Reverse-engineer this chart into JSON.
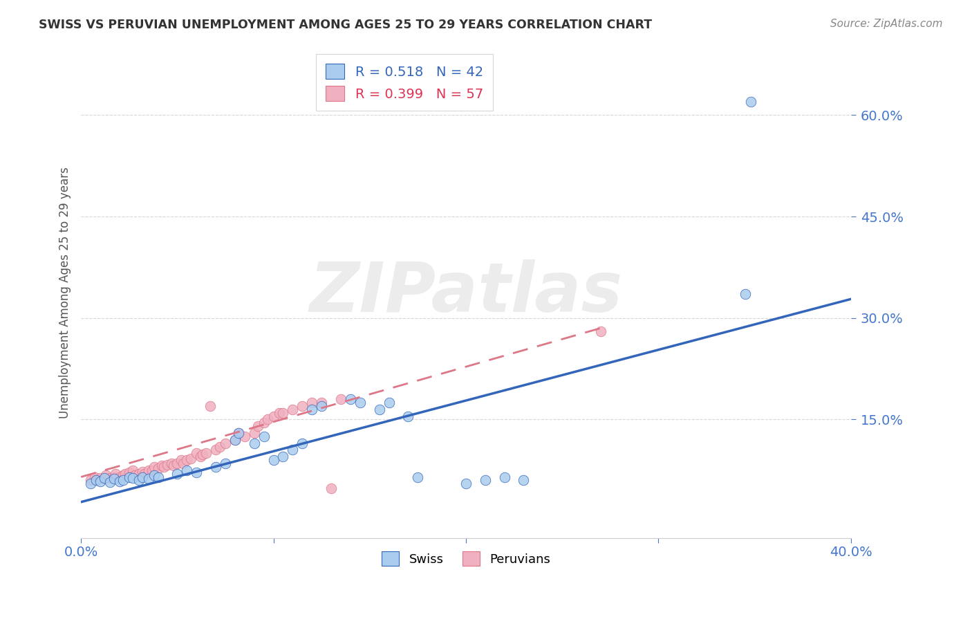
{
  "title": "SWISS VS PERUVIAN UNEMPLOYMENT AMONG AGES 25 TO 29 YEARS CORRELATION CHART",
  "source": "Source: ZipAtlas.com",
  "ylabel": "Unemployment Among Ages 25 to 29 years",
  "xlim": [
    0.0,
    0.4
  ],
  "ylim": [
    -0.025,
    0.7
  ],
  "xtick_positions": [
    0.0,
    0.1,
    0.2,
    0.3,
    0.4
  ],
  "ytick_positions": [
    0.15,
    0.3,
    0.45,
    0.6
  ],
  "ytick_labels": [
    "15.0%",
    "30.0%",
    "45.0%",
    "60.0%"
  ],
  "swiss_R": 0.518,
  "swiss_N": 42,
  "peru_R": 0.399,
  "peru_N": 57,
  "swiss_color": "#aaccee",
  "peru_color": "#f0b0c0",
  "swiss_line_color": "#3366bb",
  "peru_line_color": "#dd7788",
  "swiss_scatter": [
    [
      0.005,
      0.055
    ],
    [
      0.008,
      0.06
    ],
    [
      0.01,
      0.058
    ],
    [
      0.012,
      0.063
    ],
    [
      0.015,
      0.057
    ],
    [
      0.017,
      0.062
    ],
    [
      0.02,
      0.058
    ],
    [
      0.022,
      0.06
    ],
    [
      0.025,
      0.065
    ],
    [
      0.027,
      0.063
    ],
    [
      0.03,
      0.06
    ],
    [
      0.032,
      0.065
    ],
    [
      0.035,
      0.062
    ],
    [
      0.038,
      0.068
    ],
    [
      0.04,
      0.065
    ],
    [
      0.05,
      0.07
    ],
    [
      0.055,
      0.075
    ],
    [
      0.06,
      0.072
    ],
    [
      0.07,
      0.08
    ],
    [
      0.075,
      0.085
    ],
    [
      0.08,
      0.12
    ],
    [
      0.082,
      0.13
    ],
    [
      0.09,
      0.115
    ],
    [
      0.095,
      0.125
    ],
    [
      0.1,
      0.09
    ],
    [
      0.105,
      0.095
    ],
    [
      0.11,
      0.105
    ],
    [
      0.115,
      0.115
    ],
    [
      0.12,
      0.165
    ],
    [
      0.125,
      0.17
    ],
    [
      0.14,
      0.18
    ],
    [
      0.145,
      0.175
    ],
    [
      0.155,
      0.165
    ],
    [
      0.16,
      0.175
    ],
    [
      0.17,
      0.155
    ],
    [
      0.175,
      0.065
    ],
    [
      0.2,
      0.055
    ],
    [
      0.21,
      0.06
    ],
    [
      0.22,
      0.065
    ],
    [
      0.23,
      0.06
    ],
    [
      0.345,
      0.335
    ],
    [
      0.348,
      0.62
    ]
  ],
  "peru_scatter": [
    [
      0.005,
      0.06
    ],
    [
      0.007,
      0.065
    ],
    [
      0.008,
      0.06
    ],
    [
      0.01,
      0.063
    ],
    [
      0.012,
      0.062
    ],
    [
      0.013,
      0.068
    ],
    [
      0.015,
      0.063
    ],
    [
      0.017,
      0.065
    ],
    [
      0.018,
      0.07
    ],
    [
      0.02,
      0.065
    ],
    [
      0.022,
      0.068
    ],
    [
      0.023,
      0.07
    ],
    [
      0.025,
      0.072
    ],
    [
      0.027,
      0.075
    ],
    [
      0.028,
      0.068
    ],
    [
      0.03,
      0.07
    ],
    [
      0.032,
      0.073
    ],
    [
      0.033,
      0.07
    ],
    [
      0.035,
      0.075
    ],
    [
      0.037,
      0.075
    ],
    [
      0.038,
      0.08
    ],
    [
      0.04,
      0.078
    ],
    [
      0.042,
      0.082
    ],
    [
      0.043,
      0.08
    ],
    [
      0.045,
      0.083
    ],
    [
      0.047,
      0.085
    ],
    [
      0.048,
      0.082
    ],
    [
      0.05,
      0.085
    ],
    [
      0.052,
      0.09
    ],
    [
      0.053,
      0.085
    ],
    [
      0.055,
      0.09
    ],
    [
      0.057,
      0.092
    ],
    [
      0.06,
      0.1
    ],
    [
      0.062,
      0.095
    ],
    [
      0.063,
      0.098
    ],
    [
      0.065,
      0.1
    ],
    [
      0.067,
      0.17
    ],
    [
      0.07,
      0.105
    ],
    [
      0.072,
      0.11
    ],
    [
      0.075,
      0.115
    ],
    [
      0.08,
      0.12
    ],
    [
      0.082,
      0.13
    ],
    [
      0.085,
      0.125
    ],
    [
      0.09,
      0.13
    ],
    [
      0.092,
      0.14
    ],
    [
      0.095,
      0.145
    ],
    [
      0.097,
      0.15
    ],
    [
      0.1,
      0.155
    ],
    [
      0.103,
      0.16
    ],
    [
      0.105,
      0.16
    ],
    [
      0.11,
      0.165
    ],
    [
      0.115,
      0.17
    ],
    [
      0.12,
      0.175
    ],
    [
      0.125,
      0.175
    ],
    [
      0.13,
      0.048
    ],
    [
      0.135,
      0.18
    ],
    [
      0.27,
      0.28
    ]
  ],
  "swiss_line": {
    "x0": 0.0,
    "y0": 0.028,
    "x1": 0.4,
    "y1": 0.328
  },
  "peru_line": {
    "x0": 0.0,
    "y0": 0.065,
    "x1": 0.27,
    "y1": 0.285
  },
  "watermark": "ZIPatlas",
  "background_color": "#ffffff",
  "grid_color": "#cccccc"
}
